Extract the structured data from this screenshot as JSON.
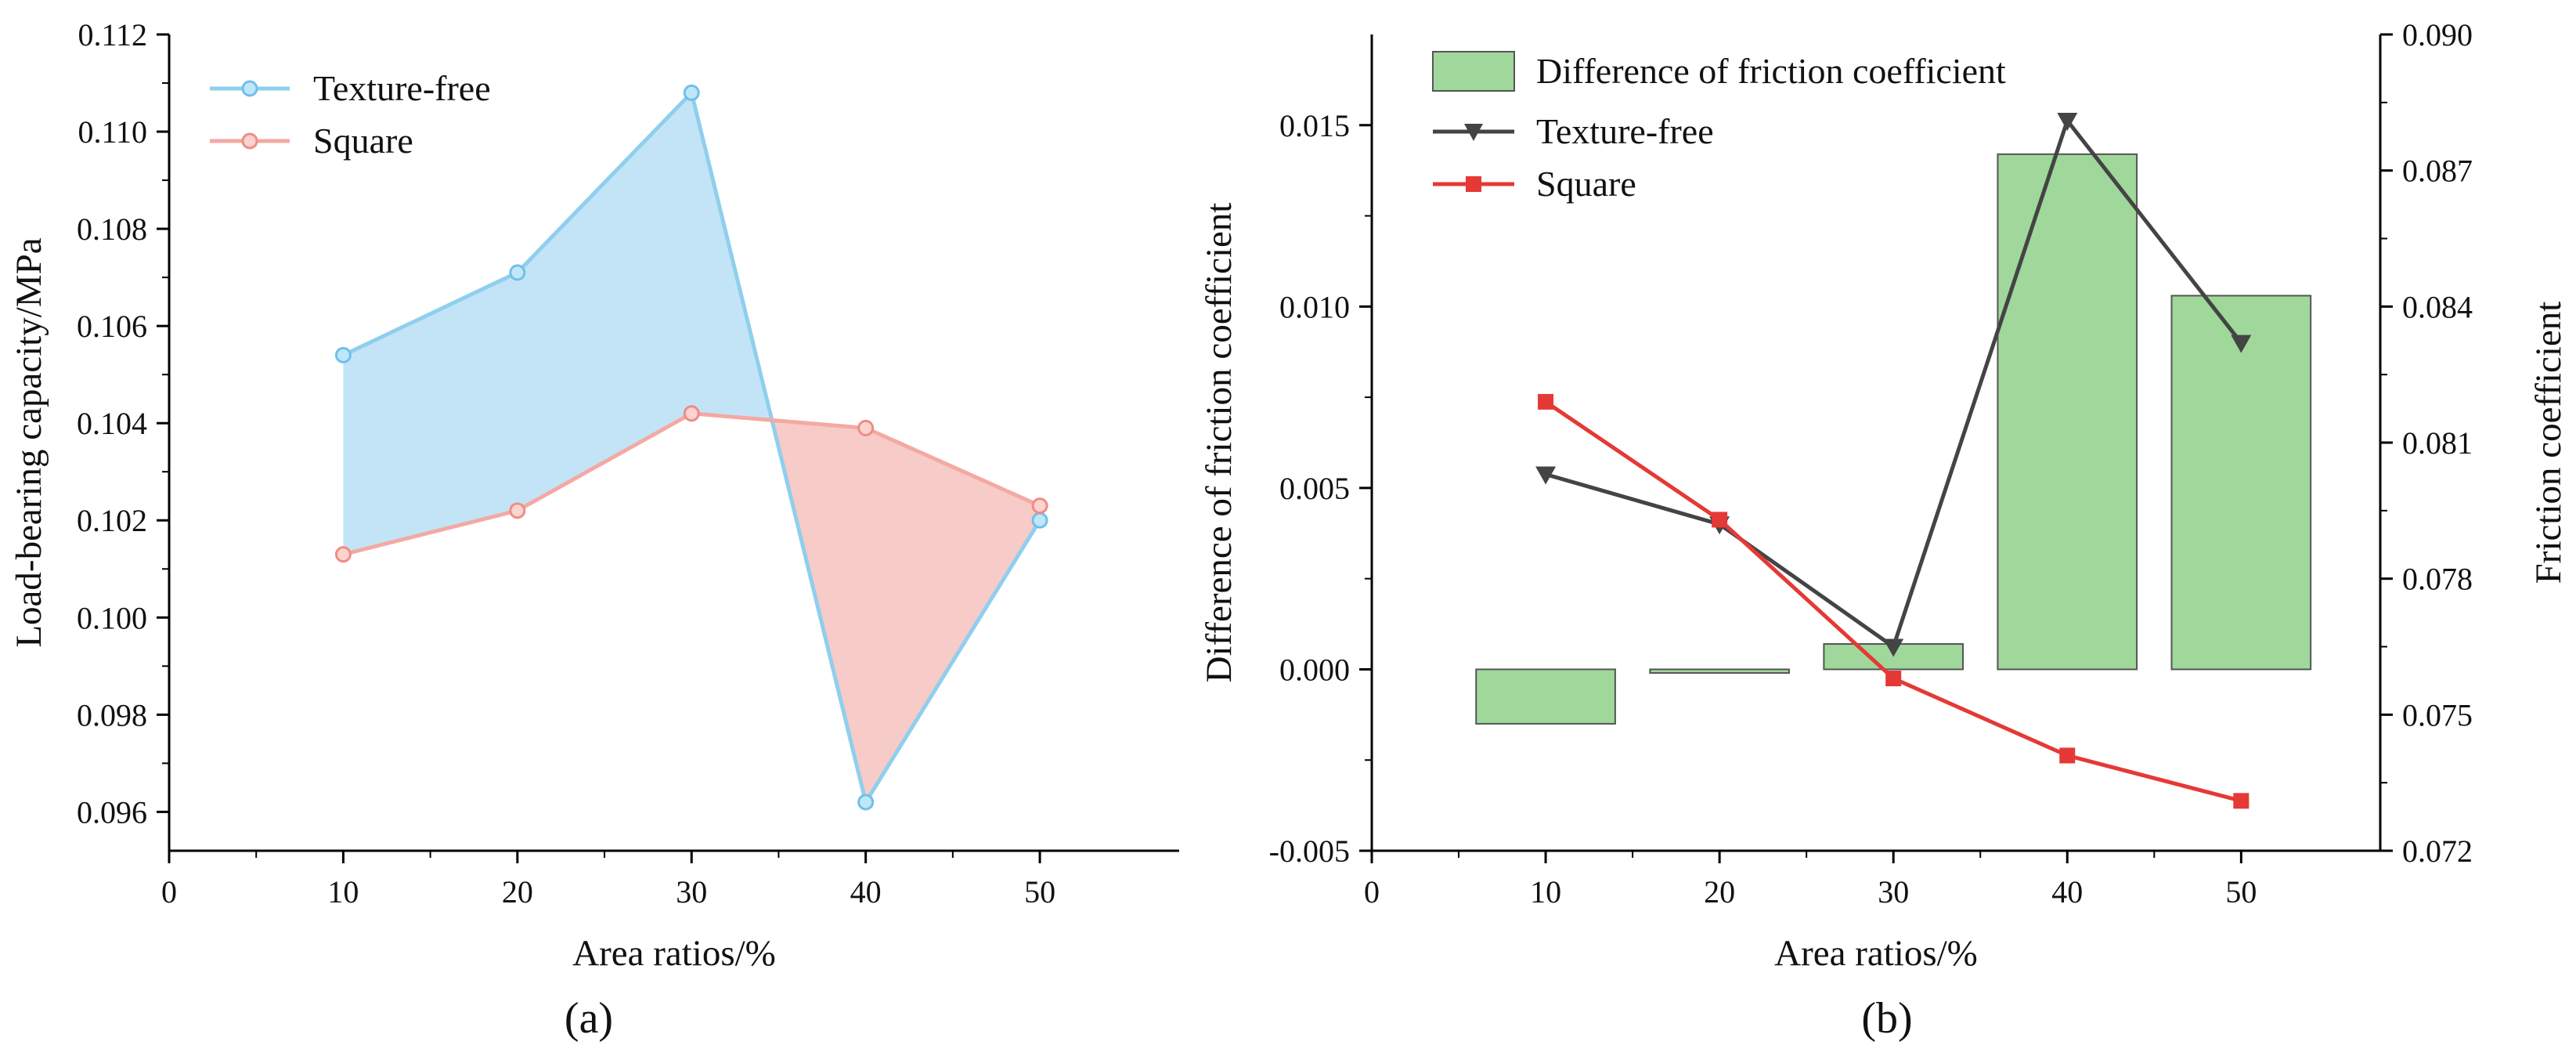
{
  "chart_data": [
    {
      "type": "area",
      "panel_label": "(a)",
      "xlabel": "Area ratios/%",
      "ylabel": "Load-bearing capacity/MPa",
      "xlim": [
        0,
        58
      ],
      "ylim": [
        0.0952,
        0.112
      ],
      "x_ticks": [
        0,
        10,
        20,
        30,
        40,
        50
      ],
      "y_ticks": [
        "0.096",
        "0.098",
        "0.100",
        "0.102",
        "0.104",
        "0.106",
        "0.108",
        "0.110",
        "0.112"
      ],
      "legend_position": "top-left",
      "x": [
        10,
        20,
        30,
        40,
        50
      ],
      "series": [
        {
          "name": "Texture-free",
          "values": [
            0.1054,
            0.1071,
            0.1108,
            0.0962,
            0.102
          ],
          "color": "#8fcfee",
          "fill": "#c3e4f7"
        },
        {
          "name": "Square",
          "values": [
            0.1013,
            0.1022,
            0.1042,
            0.1039,
            0.1023
          ],
          "color": "#f4a9a3",
          "fill": "#f7cbc7"
        }
      ]
    },
    {
      "type": "bar",
      "panel_label": "(b)",
      "xlabel": "Area ratios/%",
      "ylabel_left": "Difference of friction coefficient",
      "ylabel_right": "Friction coefficient",
      "xlim": [
        0,
        58
      ],
      "ylim_left": [
        -0.005,
        0.0175
      ],
      "ylim_right": [
        0.072,
        0.09
      ],
      "x_ticks": [
        0,
        10,
        20,
        30,
        40,
        50
      ],
      "y_ticks_left": [
        "-0.005",
        "0.000",
        "0.005",
        "0.010",
        "0.015"
      ],
      "y_ticks_right": [
        "0.072",
        "0.075",
        "0.078",
        "0.081",
        "0.084",
        "0.087",
        "0.090"
      ],
      "legend_position": "top-left",
      "x": [
        10,
        20,
        30,
        40,
        50
      ],
      "bars": {
        "name": "Difference of friction coefficient",
        "values": [
          -0.0015,
          -0.0001,
          0.0007,
          0.0142,
          0.0103
        ],
        "color": "#9fd89a",
        "edge": "#555555"
      },
      "series": [
        {
          "name": "Texture-free",
          "axis": "right",
          "marker": "triangle-down",
          "values": [
            0.0803,
            0.0792,
            0.0765,
            0.0881,
            0.0832
          ],
          "color": "#444444"
        },
        {
          "name": "Square",
          "axis": "right",
          "marker": "square",
          "values": [
            0.0819,
            0.0793,
            0.0758,
            0.0741,
            0.0731
          ],
          "color": "#e53935"
        }
      ]
    }
  ]
}
